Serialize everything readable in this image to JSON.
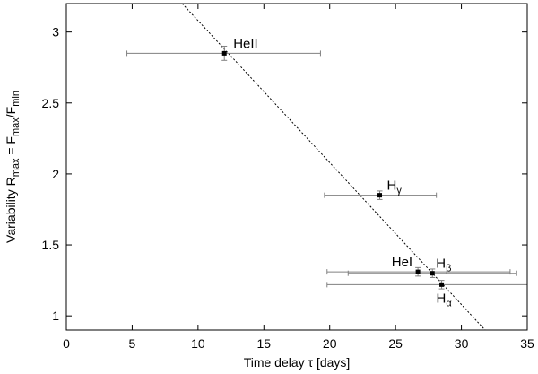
{
  "chart_data": {
    "type": "scatter",
    "xlabel": "Time delay τ [days]",
    "ylabel": "Variability R_max = F_max/F_min",
    "xlim": [
      0,
      35
    ],
    "ylim": [
      0.9,
      3.2
    ],
    "x_ticks": [
      "0",
      "5",
      "10",
      "15",
      "20",
      "25",
      "30",
      "35"
    ],
    "y_ticks": [
      "1",
      "1.5",
      "2",
      "2.5",
      "3"
    ],
    "grid": false,
    "points": [
      {
        "label": "HeII",
        "x": 12.0,
        "y": 2.85,
        "xerr": [
          4.6,
          19.3
        ],
        "yerr": [
          2.8,
          2.9
        ]
      },
      {
        "label": "Hγ",
        "x": 23.8,
        "y": 1.85,
        "xerr": [
          19.6,
          28.1
        ],
        "yerr": [
          1.82,
          1.88
        ]
      },
      {
        "label": "HeI",
        "x": 26.7,
        "y": 1.31,
        "xerr": [
          19.8,
          33.7
        ],
        "yerr": [
          1.28,
          1.34
        ]
      },
      {
        "label": "Hβ",
        "x": 27.8,
        "y": 1.3,
        "xerr": [
          21.4,
          34.2
        ],
        "yerr": [
          1.27,
          1.33
        ]
      },
      {
        "label": "Hα",
        "x": 28.5,
        "y": 1.22,
        "xerr": [
          19.8,
          35.0
        ],
        "yerr": [
          1.19,
          1.25
        ]
      }
    ],
    "fit_line": {
      "x": [
        8.8,
        31.8
      ],
      "y": [
        3.2,
        0.9
      ]
    },
    "colors": {
      "errorbar": "#808080",
      "marker": "#000000",
      "fit": "#000000"
    }
  }
}
